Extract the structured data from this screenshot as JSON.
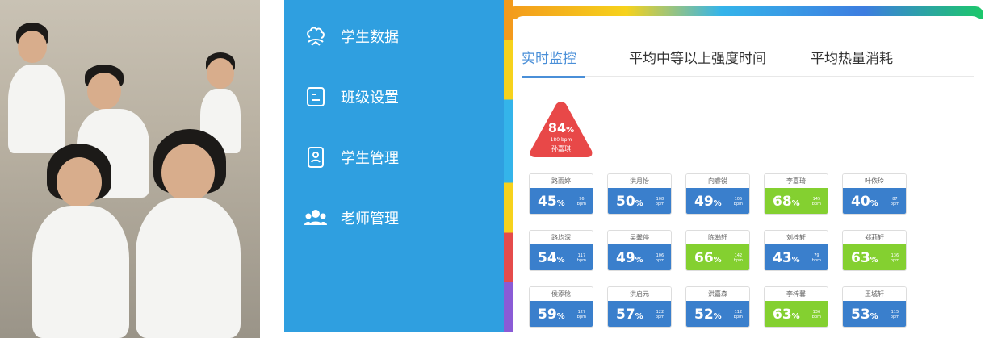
{
  "sidebar": {
    "items": [
      {
        "label": "学生数据",
        "icon": "brain-icon"
      },
      {
        "label": "班级设置",
        "icon": "settings-card-icon"
      },
      {
        "label": "学生管理",
        "icon": "student-id-icon"
      },
      {
        "label": "老师管理",
        "icon": "teachers-icon"
      }
    ]
  },
  "tabs": [
    "实时监控",
    "平均中等以上强度时间",
    "平均热量消耗"
  ],
  "active_tab": 0,
  "colors": {
    "sidebar": "#2f9fe0",
    "blue": "#3a7fcc",
    "green": "#84d030",
    "red": "#e84848",
    "accent": "#4a8fd8"
  },
  "alert": {
    "percent": "84",
    "unit": "%",
    "bpm": "180 bpm",
    "name": "孙嘉琪"
  },
  "students": [
    {
      "name": "路雨婷",
      "percent": "45",
      "bpm": "96",
      "status": "blue"
    },
    {
      "name": "洪月怡",
      "percent": "50",
      "bpm": "108",
      "status": "blue"
    },
    {
      "name": "向睿锐",
      "percent": "49",
      "bpm": "105",
      "status": "blue"
    },
    {
      "name": "李嘉琦",
      "percent": "68",
      "bpm": "145",
      "status": "green"
    },
    {
      "name": "叶依玲",
      "percent": "40",
      "bpm": "87",
      "status": "blue"
    },
    {
      "name": "路均深",
      "percent": "54",
      "bpm": "117",
      "status": "blue"
    },
    {
      "name": "吴馨停",
      "percent": "49",
      "bpm": "106",
      "status": "blue"
    },
    {
      "name": "陈瀚轩",
      "percent": "66",
      "bpm": "142",
      "status": "green"
    },
    {
      "name": "刘梓轩",
      "percent": "43",
      "bpm": "79",
      "status": "blue"
    },
    {
      "name": "郑莉轩",
      "percent": "63",
      "bpm": "136",
      "status": "green"
    },
    {
      "name": "侯添稔",
      "percent": "59",
      "bpm": "127",
      "status": "blue"
    },
    {
      "name": "洪启元",
      "percent": "57",
      "bpm": "122",
      "status": "blue"
    },
    {
      "name": "洪嘉森",
      "percent": "52",
      "bpm": "112",
      "status": "blue"
    },
    {
      "name": "李梓馨",
      "percent": "63",
      "bpm": "136",
      "status": "green"
    },
    {
      "name": "王城轩",
      "percent": "53",
      "bpm": "115",
      "status": "blue"
    }
  ],
  "bpm_unit": "bpm",
  "percent_unit": "%"
}
